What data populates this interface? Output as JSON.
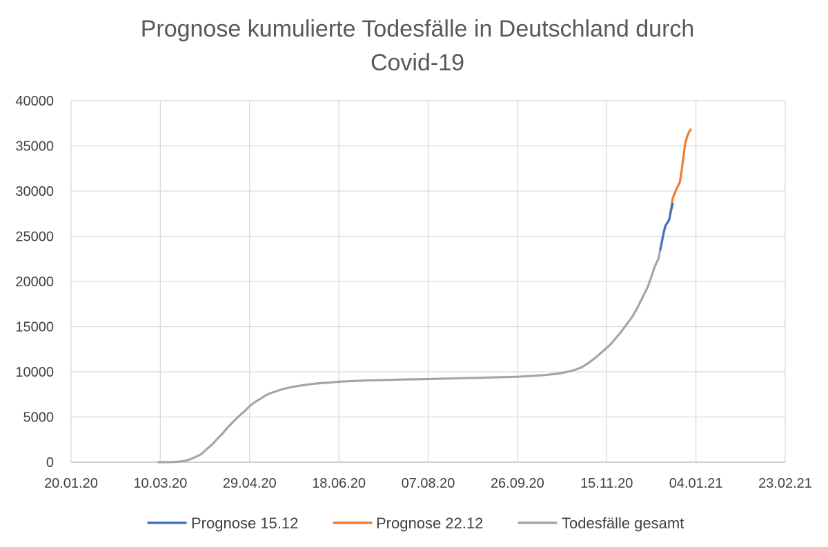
{
  "chart_data": {
    "type": "line",
    "title_lines": [
      "Prognose kumulierte Todesfälle in Deutschland durch",
      "Covid-19"
    ],
    "xlabel": "",
    "ylabel": "",
    "x_axis_type": "date",
    "x_ticks": [
      {
        "date": "2020-01-20",
        "label": "20.01.20"
      },
      {
        "date": "2020-03-10",
        "label": "10.03.20"
      },
      {
        "date": "2020-04-29",
        "label": "29.04.20"
      },
      {
        "date": "2020-06-18",
        "label": "18.06.20"
      },
      {
        "date": "2020-08-07",
        "label": "07.08.20"
      },
      {
        "date": "2020-09-26",
        "label": "26.09.20"
      },
      {
        "date": "2020-11-15",
        "label": "15.11.20"
      },
      {
        "date": "2021-01-04",
        "label": "04.01.21"
      },
      {
        "date": "2021-02-23",
        "label": "23.02.21"
      }
    ],
    "xlim": [
      "2020-01-20",
      "2021-02-23"
    ],
    "ylim": [
      0,
      40000
    ],
    "y_ticks": [
      {
        "value": 0,
        "label": "0"
      },
      {
        "value": 5000,
        "label": "5000"
      },
      {
        "value": 10000,
        "label": "10000"
      },
      {
        "value": 15000,
        "label": "15000"
      },
      {
        "value": 20000,
        "label": "20000"
      },
      {
        "value": 25000,
        "label": "25000"
      },
      {
        "value": 30000,
        "label": "30000"
      },
      {
        "value": 35000,
        "label": "35000"
      },
      {
        "value": 40000,
        "label": "40000"
      }
    ],
    "grid": true,
    "legend_position": "bottom",
    "series": [
      {
        "name": "Prognose 15.12",
        "color": "#4472c4",
        "points": [
          [
            "2020-12-15",
            23500
          ],
          [
            "2020-12-16",
            24500
          ],
          [
            "2020-12-17",
            25500
          ],
          [
            "2020-12-18",
            26200
          ],
          [
            "2020-12-19",
            26500
          ],
          [
            "2020-12-20",
            26800
          ],
          [
            "2020-12-21",
            27800
          ],
          [
            "2020-12-22",
            28600
          ]
        ]
      },
      {
        "name": "Prognose 22.12",
        "color": "#ed7d31",
        "points": [
          [
            "2020-12-21",
            28000
          ],
          [
            "2020-12-22",
            29200
          ],
          [
            "2020-12-23",
            29700
          ],
          [
            "2020-12-24",
            30200
          ],
          [
            "2020-12-25",
            30600
          ],
          [
            "2020-12-26",
            31000
          ],
          [
            "2020-12-27",
            32300
          ],
          [
            "2020-12-28",
            33800
          ],
          [
            "2020-12-29",
            35300
          ],
          [
            "2020-12-30",
            36000
          ],
          [
            "2020-12-31",
            36500
          ],
          [
            "2021-01-01",
            36800
          ]
        ]
      },
      {
        "name": "Todesfälle gesamt",
        "color": "#a5a5a5",
        "points": [
          [
            "2020-03-09",
            0
          ],
          [
            "2020-03-12",
            2
          ],
          [
            "2020-03-15",
            12
          ],
          [
            "2020-03-18",
            28
          ],
          [
            "2020-03-21",
            70
          ],
          [
            "2020-03-24",
            150
          ],
          [
            "2020-03-27",
            340
          ],
          [
            "2020-03-30",
            600
          ],
          [
            "2020-04-02",
            900
          ],
          [
            "2020-04-05",
            1450
          ],
          [
            "2020-04-08",
            1950
          ],
          [
            "2020-04-11",
            2600
          ],
          [
            "2020-04-14",
            3200
          ],
          [
            "2020-04-17",
            3900
          ],
          [
            "2020-04-20",
            4500
          ],
          [
            "2020-04-23",
            5100
          ],
          [
            "2020-04-26",
            5600
          ],
          [
            "2020-04-29",
            6200
          ],
          [
            "2020-05-02",
            6650
          ],
          [
            "2020-05-05",
            7000
          ],
          [
            "2020-05-08",
            7400
          ],
          [
            "2020-05-11",
            7650
          ],
          [
            "2020-05-14",
            7850
          ],
          [
            "2020-05-17",
            8050
          ],
          [
            "2020-05-21",
            8250
          ],
          [
            "2020-05-25",
            8400
          ],
          [
            "2020-05-30",
            8550
          ],
          [
            "2020-06-05",
            8700
          ],
          [
            "2020-06-12",
            8800
          ],
          [
            "2020-06-18",
            8900
          ],
          [
            "2020-06-25",
            8970
          ],
          [
            "2020-07-05",
            9050
          ],
          [
            "2020-07-15",
            9100
          ],
          [
            "2020-07-25",
            9150
          ],
          [
            "2020-08-07",
            9200
          ],
          [
            "2020-08-20",
            9260
          ],
          [
            "2020-09-01",
            9320
          ],
          [
            "2020-09-13",
            9380
          ],
          [
            "2020-09-26",
            9450
          ],
          [
            "2020-10-05",
            9550
          ],
          [
            "2020-10-12",
            9650
          ],
          [
            "2020-10-19",
            9800
          ],
          [
            "2020-10-24",
            10000
          ],
          [
            "2020-10-28",
            10200
          ],
          [
            "2020-11-01",
            10500
          ],
          [
            "2020-11-05",
            11000
          ],
          [
            "2020-11-09",
            11600
          ],
          [
            "2020-11-13",
            12300
          ],
          [
            "2020-11-17",
            13000
          ],
          [
            "2020-11-20",
            13700
          ],
          [
            "2020-11-23",
            14400
          ],
          [
            "2020-11-26",
            15200
          ],
          [
            "2020-11-29",
            16000
          ],
          [
            "2020-12-02",
            17000
          ],
          [
            "2020-12-05",
            18200
          ],
          [
            "2020-12-08",
            19400
          ],
          [
            "2020-12-10",
            20500
          ],
          [
            "2020-12-12",
            21700
          ],
          [
            "2020-12-14",
            22500
          ],
          [
            "2020-12-15",
            23500
          ],
          [
            "2020-12-16",
            24400
          ],
          [
            "2020-12-17",
            25400
          ],
          [
            "2020-12-18",
            26200
          ],
          [
            "2020-12-19",
            26500
          ],
          [
            "2020-12-20",
            26900
          ],
          [
            "2020-12-21",
            28000
          ]
        ]
      }
    ]
  }
}
